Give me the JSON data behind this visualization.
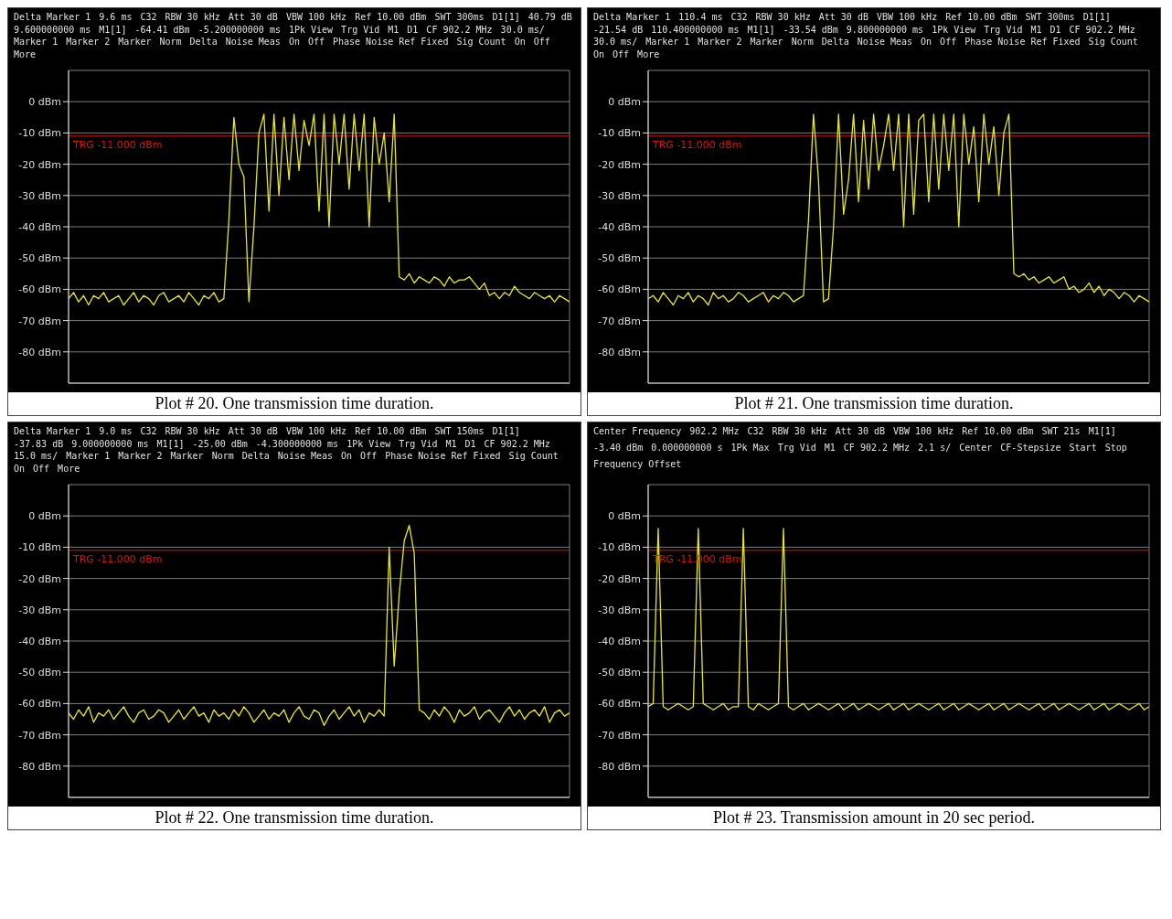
{
  "chart_data": [
    {
      "type": "line",
      "title": "Plot # 20. One transmission time duration.",
      "categories": [
        null,
        null,
        null,
        null,
        null,
        null,
        null,
        null,
        null,
        null,
        null,
        null,
        null,
        null,
        null,
        null,
        null,
        null,
        null,
        null,
        null,
        null,
        null,
        null,
        null,
        null,
        null,
        null,
        null,
        null,
        null,
        null,
        null,
        null,
        null,
        null,
        null,
        null,
        null,
        null,
        null,
        null,
        null,
        null,
        null,
        null,
        null,
        null,
        null,
        null,
        null,
        null,
        null,
        null,
        null,
        null,
        null,
        null,
        null,
        null,
        null,
        null,
        null,
        null,
        null,
        null,
        null,
        null,
        null,
        null,
        null,
        null,
        null,
        null,
        null,
        null,
        null,
        null,
        null,
        null,
        null,
        null,
        null,
        null,
        null,
        null,
        null,
        null,
        null,
        null,
        null,
        null,
        null,
        null,
        null,
        null,
        null,
        null,
        null,
        null,
        null
      ],
      "series": [
        {
          "color": "#e8e820",
          "values": [
            -63,
            -61,
            -64,
            -62,
            -65,
            -62,
            -63,
            -61,
            -64,
            -63,
            -62,
            -65,
            -63,
            -61,
            -64,
            -62,
            -63,
            -65,
            -62,
            -61,
            -64,
            -63,
            -62,
            -64,
            -61,
            -63,
            -65,
            -62,
            -63,
            -61,
            -64,
            -63,
            -38,
            -5,
            -20,
            -24,
            -64,
            -40,
            -10,
            -4,
            -35,
            -4,
            -30,
            -5,
            -25,
            -4,
            -22,
            -6,
            -14,
            -4,
            -35,
            -4,
            -40,
            -4,
            -20,
            -4,
            -28,
            -4,
            -22,
            -4,
            -40,
            -5,
            -20,
            -10,
            -32,
            -4,
            -56,
            -57,
            -55,
            -58,
            -56,
            -57,
            -58,
            -56,
            -57,
            -59,
            -56,
            -58,
            -57,
            -57,
            -56,
            -58,
            -60,
            -58,
            -62,
            -61,
            -63,
            -61,
            -62,
            -59,
            -61,
            -62,
            -63,
            -61,
            -62,
            -63,
            -62,
            -64,
            -62,
            -63,
            -64
          ]
        }
      ],
      "ylim": [
        -90,
        10
      ],
      "yticks": [
        {
          "value": 0,
          "label": "0 dBm"
        },
        {
          "value": -10,
          "label": "-10 dBm"
        },
        {
          "value": -20,
          "label": "-20 dBm"
        },
        {
          "value": -30,
          "label": "-30 dBm"
        },
        {
          "value": -40,
          "label": "-40 dBm"
        },
        {
          "value": -50,
          "label": "-50 dBm"
        },
        {
          "value": -60,
          "label": "-60 dBm"
        },
        {
          "value": -70,
          "label": "-70 dBm"
        },
        {
          "value": -80,
          "label": "-80 dBm"
        }
      ],
      "grid": true,
      "tick_labels": "y",
      "marker": "none",
      "line_style": "solid",
      "ref_lines": [
        {
          "axis": "y",
          "value": -11,
          "label": "TRG -11.000 dBm",
          "color": "#dd1111"
        }
      ],
      "annotations": [
        "Delta Marker 1",
        "9.6 ms",
        "C32",
        "RBW 30 kHz",
        "Att 30 dB",
        "VBW 100 kHz",
        "Ref 10.00 dBm",
        "SWT 300ms",
        "D1[1]",
        "40.79 dB",
        "9.600000000 ms",
        "M1[1]",
        "-64.41 dBm",
        "-5.200000000 ms",
        "1Pk View",
        "Trg Vid",
        "M1",
        "D1",
        "CF 902.2 MHz",
        "30.0 ms/",
        "Marker 1",
        "Marker 2",
        "Marker",
        "Norm",
        "Delta",
        "Noise Meas",
        "On",
        "Off",
        "Phase Noise Ref Fixed",
        "Sig Count",
        "On",
        "Off",
        "More"
      ]
    },
    {
      "type": "line",
      "title": "Plot # 21. One transmission time duration.",
      "categories": [
        null,
        null,
        null,
        null,
        null,
        null,
        null,
        null,
        null,
        null,
        null,
        null,
        null,
        null,
        null,
        null,
        null,
        null,
        null,
        null,
        null,
        null,
        null,
        null,
        null,
        null,
        null,
        null,
        null,
        null,
        null,
        null,
        null,
        null,
        null,
        null,
        null,
        null,
        null,
        null,
        null,
        null,
        null,
        null,
        null,
        null,
        null,
        null,
        null,
        null,
        null,
        null,
        null,
        null,
        null,
        null,
        null,
        null,
        null,
        null,
        null,
        null,
        null,
        null,
        null,
        null,
        null,
        null,
        null,
        null,
        null,
        null,
        null,
        null,
        null,
        null,
        null,
        null,
        null,
        null,
        null,
        null,
        null,
        null,
        null,
        null,
        null,
        null,
        null,
        null,
        null,
        null,
        null,
        null,
        null,
        null,
        null,
        null,
        null,
        null,
        null
      ],
      "series": [
        {
          "color": "#e8e820",
          "values": [
            -63,
            -62,
            -64,
            -61,
            -63,
            -65,
            -62,
            -63,
            -61,
            -64,
            -62,
            -63,
            -65,
            -61,
            -63,
            -62,
            -64,
            -63,
            -61,
            -62,
            -64,
            -63,
            -62,
            -61,
            -64,
            -62,
            -63,
            -61,
            -62,
            -64,
            -63,
            -62,
            -38,
            -4,
            -25,
            -64,
            -63,
            -40,
            -4,
            -36,
            -25,
            -4,
            -32,
            -6,
            -28,
            -4,
            -22,
            -14,
            -4,
            -22,
            -4,
            -40,
            -4,
            -36,
            -6,
            -4,
            -32,
            -4,
            -28,
            -4,
            -22,
            -4,
            -40,
            -4,
            -20,
            -8,
            -32,
            -4,
            -20,
            -8,
            -30,
            -10,
            -4,
            -55,
            -56,
            -55,
            -57,
            -56,
            -58,
            -57,
            -56,
            -58,
            -57,
            -56,
            -60,
            -59,
            -61,
            -60,
            -58,
            -61,
            -59,
            -62,
            -60,
            -61,
            -63,
            -61,
            -62,
            -64,
            -62,
            -63,
            -64
          ]
        }
      ],
      "ylim": [
        -90,
        10
      ],
      "yticks": [
        {
          "value": 0,
          "label": "0 dBm"
        },
        {
          "value": -10,
          "label": "-10 dBm"
        },
        {
          "value": -20,
          "label": "-20 dBm"
        },
        {
          "value": -30,
          "label": "-30 dBm"
        },
        {
          "value": -40,
          "label": "-40 dBm"
        },
        {
          "value": -50,
          "label": "-50 dBm"
        },
        {
          "value": -60,
          "label": "-60 dBm"
        },
        {
          "value": -70,
          "label": "-70 dBm"
        },
        {
          "value": -80,
          "label": "-80 dBm"
        }
      ],
      "grid": true,
      "tick_labels": "y",
      "marker": "none",
      "line_style": "solid",
      "ref_lines": [
        {
          "axis": "y",
          "value": -11,
          "label": "TRG -11.000 dBm",
          "color": "#dd1111"
        }
      ],
      "annotations": [
        "Delta Marker 1",
        "110.4 ms",
        "C32",
        "RBW 30 kHz",
        "Att 30 dB",
        "VBW 100 kHz",
        "Ref 10.00 dBm",
        "SWT 300ms",
        "D1[1]",
        "-21.54 dB",
        "110.400000000 ms",
        "M1[1]",
        "-33.54 dBm",
        "9.800000000 ms",
        "1Pk View",
        "Trg Vid",
        "M1",
        "D1",
        "CF 902.2 MHz",
        "30.0 ms/",
        "Marker 1",
        "Marker 2",
        "Marker",
        "Norm",
        "Delta",
        "Noise Meas",
        "On",
        "Off",
        "Phase Noise Ref Fixed",
        "Sig Count",
        "On",
        "Off",
        "More"
      ]
    },
    {
      "type": "line",
      "title": "Plot # 22. One transmission time duration.",
      "categories": [
        null,
        null,
        null,
        null,
        null,
        null,
        null,
        null,
        null,
        null,
        null,
        null,
        null,
        null,
        null,
        null,
        null,
        null,
        null,
        null,
        null,
        null,
        null,
        null,
        null,
        null,
        null,
        null,
        null,
        null,
        null,
        null,
        null,
        null,
        null,
        null,
        null,
        null,
        null,
        null,
        null,
        null,
        null,
        null,
        null,
        null,
        null,
        null,
        null,
        null,
        null,
        null,
        null,
        null,
        null,
        null,
        null,
        null,
        null,
        null,
        null,
        null,
        null,
        null,
        null,
        null,
        null,
        null,
        null,
        null,
        null,
        null,
        null,
        null,
        null,
        null,
        null,
        null,
        null,
        null,
        null,
        null,
        null,
        null,
        null,
        null,
        null,
        null,
        null,
        null,
        null,
        null,
        null,
        null,
        null,
        null,
        null,
        null,
        null,
        null,
        null
      ],
      "series": [
        {
          "color": "#e8e820",
          "values": [
            -63,
            -65,
            -62,
            -64,
            -61,
            -66,
            -63,
            -64,
            -62,
            -65,
            -63,
            -61,
            -64,
            -66,
            -63,
            -62,
            -65,
            -64,
            -62,
            -63,
            -66,
            -64,
            -62,
            -65,
            -63,
            -61,
            -64,
            -63,
            -66,
            -62,
            -64,
            -63,
            -65,
            -62,
            -64,
            -61,
            -63,
            -66,
            -64,
            -62,
            -65,
            -63,
            -64,
            -62,
            -66,
            -63,
            -61,
            -64,
            -65,
            -62,
            -63,
            -67,
            -64,
            -62,
            -65,
            -63,
            -61,
            -64,
            -62,
            -66,
            -63,
            -64,
            -62,
            -64,
            -10,
            -48,
            -25,
            -8,
            -3,
            -12,
            -62,
            -63,
            -65,
            -62,
            -64,
            -61,
            -63,
            -66,
            -62,
            -64,
            -63,
            -61,
            -65,
            -63,
            -62,
            -64,
            -66,
            -63,
            -61,
            -64,
            -62,
            -65,
            -63,
            -62,
            -64,
            -61,
            -66,
            -63,
            -62,
            -64,
            -63
          ]
        }
      ],
      "ylim": [
        -90,
        10
      ],
      "yticks": [
        {
          "value": 0,
          "label": "0 dBm"
        },
        {
          "value": -10,
          "label": "-10 dBm"
        },
        {
          "value": -20,
          "label": "-20 dBm"
        },
        {
          "value": -30,
          "label": "-30 dBm"
        },
        {
          "value": -40,
          "label": "-40 dBm"
        },
        {
          "value": -50,
          "label": "-50 dBm"
        },
        {
          "value": -60,
          "label": "-60 dBm"
        },
        {
          "value": -70,
          "label": "-70 dBm"
        },
        {
          "value": -80,
          "label": "-80 dBm"
        }
      ],
      "grid": true,
      "tick_labels": "y",
      "marker": "none",
      "line_style": "solid",
      "ref_lines": [
        {
          "axis": "y",
          "value": -11,
          "label": "TRG -11.000 dBm",
          "color": "#dd1111"
        }
      ],
      "annotations": [
        "Delta Marker 1",
        "9.0 ms",
        "C32",
        "RBW 30 kHz",
        "Att 30 dB",
        "VBW 100 kHz",
        "Ref 10.00 dBm",
        "SWT 150ms",
        "D1[1]",
        "-37.83 dB",
        "9.000000000 ms",
        "M1[1]",
        "-25.00 dBm",
        "-4.300000000 ms",
        "1Pk View",
        "Trg Vid",
        "M1",
        "D1",
        "CF 902.2 MHz",
        "15.0 ms/",
        "Marker 1",
        "Marker 2",
        "Marker",
        "Norm",
        "Delta",
        "Noise Meas",
        "On",
        "Off",
        "Phase Noise Ref Fixed",
        "Sig Count",
        "On",
        "Off",
        "More"
      ]
    },
    {
      "type": "line",
      "title": "Plot # 23. Transmission amount in 20 sec period.",
      "categories": [
        null,
        null,
        null,
        null,
        null,
        null,
        null,
        null,
        null,
        null,
        null,
        null,
        null,
        null,
        null,
        null,
        null,
        null,
        null,
        null,
        null,
        null,
        null,
        null,
        null,
        null,
        null,
        null,
        null,
        null,
        null,
        null,
        null,
        null,
        null,
        null,
        null,
        null,
        null,
        null,
        null,
        null,
        null,
        null,
        null,
        null,
        null,
        null,
        null,
        null,
        null,
        null,
        null,
        null,
        null,
        null,
        null,
        null,
        null,
        null,
        null,
        null,
        null,
        null,
        null,
        null,
        null,
        null,
        null,
        null,
        null,
        null,
        null,
        null,
        null,
        null,
        null,
        null,
        null,
        null,
        null,
        null,
        null,
        null,
        null,
        null,
        null,
        null,
        null,
        null,
        null,
        null,
        null,
        null,
        null,
        null,
        null,
        null,
        null,
        null,
        null
      ],
      "series": [
        {
          "color": "#e8e820",
          "values": [
            -61,
            -60,
            -4,
            -61,
            -62,
            -61,
            -60,
            -61,
            -62,
            -61,
            -4,
            -60,
            -61,
            -62,
            -61,
            -60,
            -62,
            -61,
            -61,
            -4,
            -61,
            -62,
            -60,
            -61,
            -62,
            -61,
            -60,
            -4,
            -61,
            -62,
            -61,
            -60,
            -62,
            -61,
            -60,
            -61,
            -62,
            -61,
            -60,
            -62,
            -61,
            -60,
            -62,
            -61,
            -60,
            -61,
            -62,
            -61,
            -60,
            -62,
            -61,
            -60,
            -62,
            -61,
            -60,
            -61,
            -62,
            -61,
            -60,
            -62,
            -61,
            -60,
            -62,
            -61,
            -60,
            -61,
            -62,
            -61,
            -60,
            -62,
            -61,
            -60,
            -62,
            -61,
            -60,
            -61,
            -62,
            -61,
            -60,
            -62,
            -61,
            -60,
            -62,
            -61,
            -60,
            -61,
            -62,
            -61,
            -60,
            -62,
            -61,
            -60,
            -62,
            -61,
            -60,
            -61,
            -62,
            -61,
            -60,
            -62,
            -61
          ]
        }
      ],
      "ylim": [
        -90,
        10
      ],
      "yticks": [
        {
          "value": 0,
          "label": "0 dBm"
        },
        {
          "value": -10,
          "label": "-10 dBm"
        },
        {
          "value": -20,
          "label": "-20 dBm"
        },
        {
          "value": -30,
          "label": "-30 dBm"
        },
        {
          "value": -40,
          "label": "-40 dBm"
        },
        {
          "value": -50,
          "label": "-50 dBm"
        },
        {
          "value": -60,
          "label": "-60 dBm"
        },
        {
          "value": -70,
          "label": "-70 dBm"
        },
        {
          "value": -80,
          "label": "-80 dBm"
        }
      ],
      "grid": true,
      "tick_labels": "y",
      "marker": "none",
      "line_style": "solid",
      "ref_lines": [
        {
          "axis": "y",
          "value": -11,
          "label": "TRG -11.000 dBm",
          "color": "#dd1111"
        }
      ],
      "annotations": [
        "Center Frequency",
        "902.2 MHz",
        "C32",
        "RBW 30 kHz",
        "Att 30 dB",
        "VBW 100 kHz",
        "Ref 10.00 dBm",
        "SWT 21s",
        "M1[1]",
        "-3.40 dBm",
        "0.000000000 s",
        "1Pk Max",
        "Trg Vid",
        "M1",
        "CF 902.2 MHz",
        "2.1 s/",
        "Center",
        "CF-Stepsize",
        "Start",
        "Stop",
        "Frequency Offset"
      ]
    }
  ]
}
